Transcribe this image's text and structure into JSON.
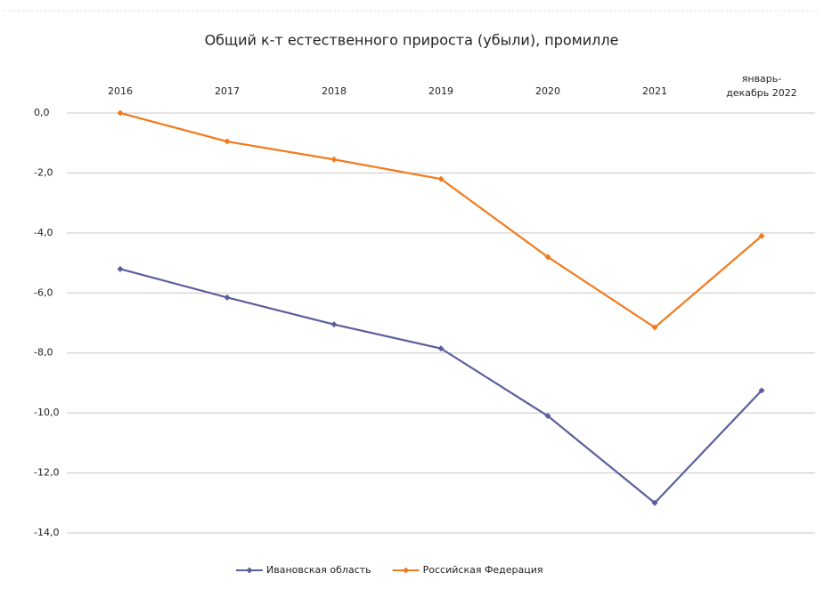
{
  "chart_data": {
    "type": "line",
    "title": "Общий к-т естественного прироста (убыли), промилле",
    "categories": [
      "2016",
      "2017",
      "2018",
      "2019",
      "2020",
      "2021",
      "январь-декабрь 2022"
    ],
    "series": [
      {
        "name": "Ивановская область",
        "color": "#5a5f9c",
        "values": [
          -5.2,
          -6.15,
          -7.05,
          -7.85,
          -10.1,
          -13.0,
          -9.25
        ]
      },
      {
        "name": "Российская Федерация",
        "color": "#f27a1c",
        "values": [
          0.0,
          -0.95,
          -1.55,
          -2.2,
          -4.8,
          -7.15,
          -4.1
        ]
      }
    ],
    "ylim": [
      -14,
      0
    ],
    "yticks": [
      {
        "value": 0,
        "label": "0,0"
      },
      {
        "value": -2,
        "label": "-2,0"
      },
      {
        "value": -4,
        "label": "-4,0"
      },
      {
        "value": -6,
        "label": "-6,0"
      },
      {
        "value": -8,
        "label": "-8,0"
      },
      {
        "value": -10,
        "label": "-10,0"
      },
      {
        "value": -12,
        "label": "-12,0"
      },
      {
        "value": -14,
        "label": "-14,0"
      }
    ],
    "grid": true,
    "legend": "bottom"
  }
}
